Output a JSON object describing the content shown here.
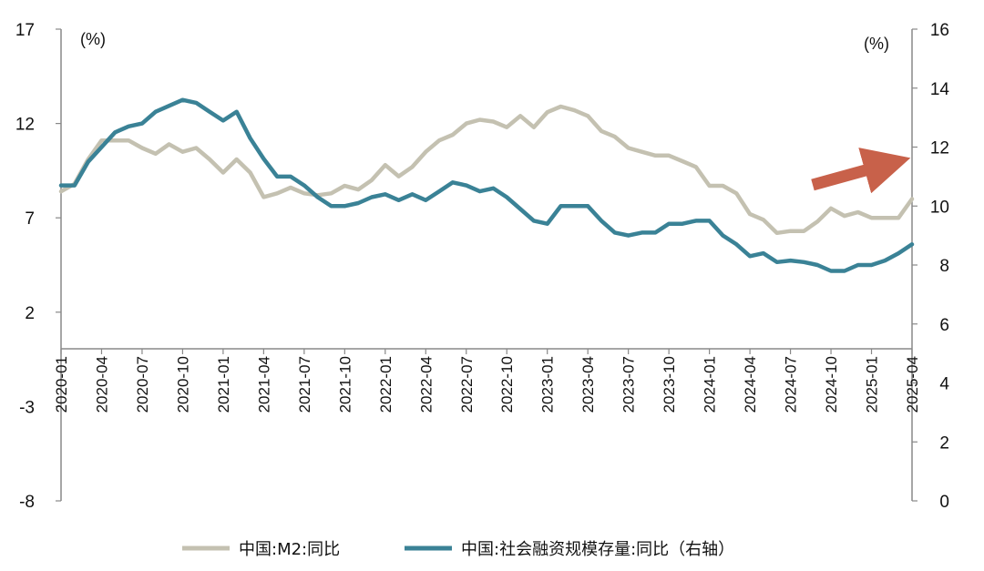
{
  "chart_data": {
    "type": "line",
    "x_tick_labels": [
      "2020-01",
      "2020-04",
      "2020-07",
      "2020-10",
      "2021-01",
      "2021-04",
      "2021-07",
      "2021-10",
      "2022-01",
      "2022-04",
      "2022-07",
      "2022-10",
      "2023-01",
      "2023-04",
      "2023-07",
      "2023-10",
      "2024-01",
      "2024-04",
      "2024-07",
      "2024-10",
      "2025-01",
      "2025-04"
    ],
    "y_left": {
      "unit": "(%)",
      "ylim": [
        -8,
        17
      ],
      "ticks": [
        17,
        12,
        7,
        2,
        -3,
        -8
      ]
    },
    "y_right": {
      "unit": "(%)",
      "ylim": [
        0,
        16
      ],
      "ticks": [
        16,
        14,
        12,
        10,
        8,
        6,
        4,
        2,
        0
      ]
    },
    "grid": false,
    "legend_position": "bottom",
    "annotation": "upward-trend-arrow",
    "colors": {
      "m2": "#c4c1b1",
      "tsf": "#3a8296",
      "arrow": "#c8614a"
    },
    "series": [
      {
        "name": "中国:M2:同比",
        "axis": "left",
        "values": [
          8.4,
          8.8,
          10.1,
          11.1,
          11.1,
          11.1,
          10.7,
          10.4,
          10.9,
          10.5,
          10.7,
          10.1,
          9.4,
          10.1,
          9.4,
          8.1,
          8.3,
          8.6,
          8.3,
          8.2,
          8.3,
          8.7,
          8.5,
          9.0,
          9.8,
          9.2,
          9.7,
          10.5,
          11.1,
          11.4,
          12.0,
          12.2,
          12.1,
          11.8,
          12.4,
          11.8,
          12.6,
          12.9,
          12.7,
          12.4,
          11.6,
          11.3,
          10.7,
          10.5,
          10.3,
          10.3,
          10.0,
          9.7,
          8.7,
          8.7,
          8.3,
          7.2,
          6.9,
          6.2,
          6.3,
          6.3,
          6.8,
          7.5,
          7.1,
          7.3,
          7.0,
          7.0,
          7.0,
          8.0
        ]
      },
      {
        "name": "中国:社会融资规模存量:同比（右轴）",
        "axis": "right",
        "values": [
          10.7,
          10.7,
          11.5,
          12.0,
          12.5,
          12.7,
          12.8,
          13.2,
          13.4,
          13.6,
          13.5,
          13.2,
          12.9,
          13.2,
          12.3,
          11.6,
          11.0,
          11.0,
          10.7,
          10.3,
          10.0,
          10.0,
          10.1,
          10.3,
          10.4,
          10.2,
          10.4,
          10.2,
          10.5,
          10.8,
          10.7,
          10.5,
          10.6,
          10.3,
          9.9,
          9.5,
          9.4,
          10.0,
          10.0,
          10.0,
          9.5,
          9.1,
          9.0,
          9.1,
          9.1,
          9.4,
          9.4,
          9.5,
          9.5,
          9.0,
          8.7,
          8.3,
          8.4,
          8.1,
          8.15,
          8.1,
          8.0,
          7.8,
          7.8,
          8.0,
          8.0,
          8.15,
          8.4,
          8.7
        ]
      }
    ]
  }
}
